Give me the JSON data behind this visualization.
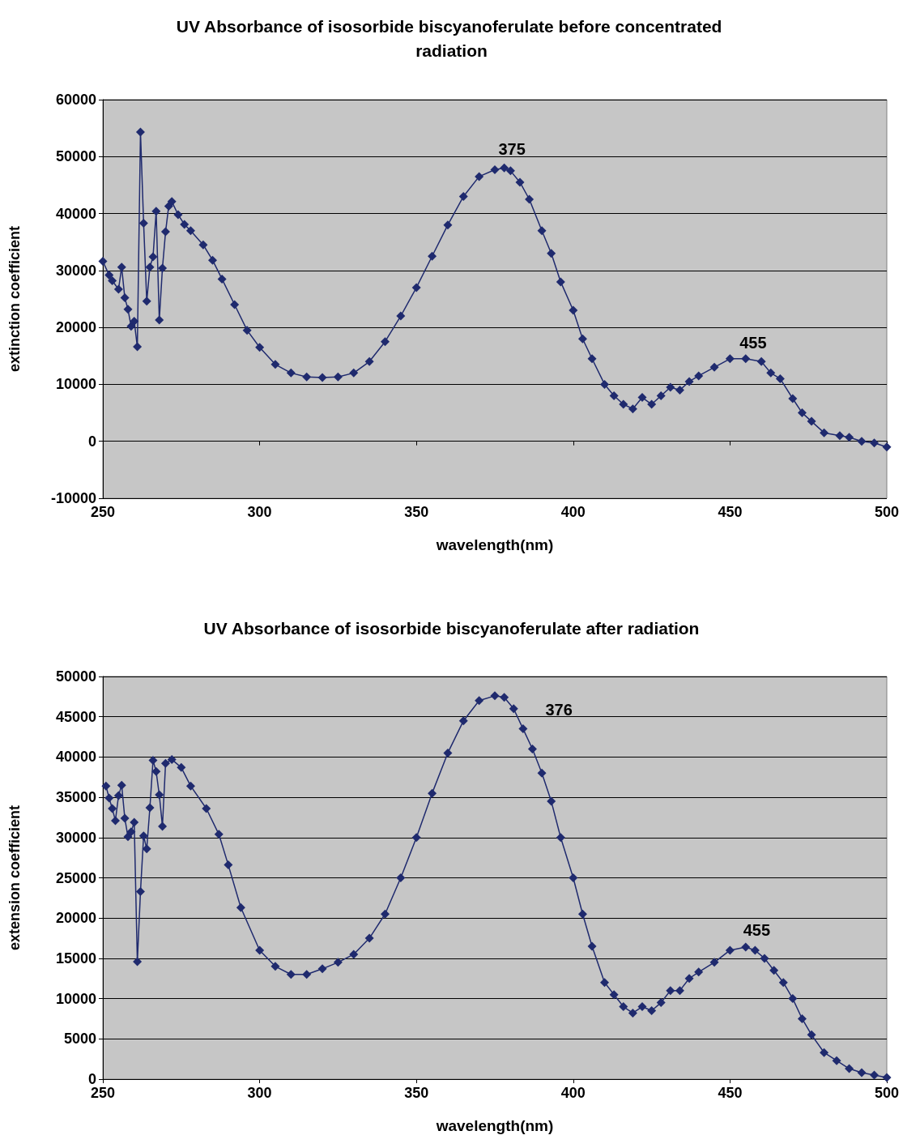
{
  "chart_data": [
    {
      "type": "line",
      "title": "UV Absorbance of isosorbide biscyanoferulate before concentrated radiation",
      "xlabel": "wavelength(nm)",
      "ylabel": "extinction coefficient",
      "x": [
        250,
        252,
        253,
        255,
        256,
        257,
        258,
        259,
        260,
        261,
        262,
        263,
        264,
        265,
        266,
        267,
        268,
        269,
        270,
        271,
        272,
        274,
        276,
        278,
        282,
        285,
        288,
        292,
        296,
        300,
        305,
        310,
        315,
        320,
        325,
        330,
        335,
        340,
        345,
        350,
        355,
        360,
        365,
        370,
        375,
        378,
        380,
        383,
        386,
        390,
        393,
        396,
        400,
        403,
        406,
        410,
        413,
        416,
        419,
        422,
        425,
        428,
        431,
        434,
        437,
        440,
        445,
        450,
        455,
        460,
        463,
        466,
        470,
        473,
        476,
        480,
        485,
        488,
        492,
        496,
        500
      ],
      "values": [
        31600,
        29200,
        28200,
        26700,
        30600,
        25200,
        23200,
        20200,
        21100,
        16600,
        54300,
        38300,
        24600,
        30600,
        32400,
        40400,
        21300,
        30400,
        36800,
        41300,
        42100,
        39800,
        38100,
        37000,
        34500,
        31800,
        28500,
        24000,
        19500,
        16500,
        13500,
        12000,
        11300,
        11200,
        11300,
        12000,
        14000,
        17500,
        22000,
        27000,
        32500,
        38000,
        43000,
        46500,
        47700,
        48000,
        47500,
        45500,
        42500,
        37000,
        33000,
        28000,
        23000,
        18000,
        14500,
        10000,
        8000,
        6500,
        5700,
        7700,
        6500,
        8000,
        9500,
        9000,
        10500,
        11500,
        13000,
        14500,
        14500,
        14000,
        12000,
        11000,
        7500,
        5000,
        3500,
        1500,
        1000,
        700,
        0,
        -300,
        -1000
      ],
      "color": "#1f2a6e",
      "marker": "diamond",
      "grid": "y",
      "xlim": [
        250,
        500
      ],
      "xticks": [
        250,
        300,
        350,
        400,
        450,
        500
      ],
      "ylim": [
        -10000,
        60000
      ],
      "yticks": [
        -10000,
        0,
        10000,
        20000,
        30000,
        40000,
        50000,
        60000
      ],
      "annotations": [
        "375",
        "455"
      ]
    },
    {
      "type": "line",
      "title": "UV Absorbance of isosorbide biscyanoferulate after radiation",
      "xlabel": "wavelength(nm)",
      "ylabel": "extension coefficient",
      "x": [
        251,
        252,
        253,
        254,
        255,
        256,
        257,
        258,
        259,
        260,
        261,
        262,
        263,
        264,
        265,
        266,
        267,
        268,
        269,
        270,
        272,
        275,
        278,
        283,
        287,
        290,
        294,
        300,
        305,
        310,
        315,
        320,
        325,
        330,
        335,
        340,
        345,
        350,
        355,
        360,
        365,
        370,
        375,
        378,
        381,
        384,
        387,
        390,
        393,
        396,
        400,
        403,
        406,
        410,
        413,
        416,
        419,
        422,
        425,
        428,
        431,
        434,
        437,
        440,
        445,
        450,
        455,
        458,
        461,
        464,
        467,
        470,
        473,
        476,
        480,
        484,
        488,
        492,
        496,
        500
      ],
      "values": [
        36400,
        34900,
        33600,
        32100,
        35200,
        36500,
        32400,
        30100,
        30700,
        31900,
        14600,
        23300,
        30200,
        28600,
        33700,
        39600,
        38200,
        35300,
        31400,
        39200,
        39700,
        38700,
        36400,
        33600,
        30400,
        26600,
        21300,
        16000,
        14000,
        13000,
        13000,
        13700,
        14500,
        15500,
        17500,
        20500,
        25000,
        30000,
        35500,
        40500,
        44500,
        47000,
        47600,
        47400,
        46000,
        43500,
        41000,
        38000,
        34500,
        30000,
        25000,
        20500,
        16500,
        12000,
        10500,
        9000,
        8200,
        9000,
        8500,
        9500,
        11000,
        11000,
        12500,
        13300,
        14500,
        16000,
        16400,
        16000,
        15000,
        13500,
        12000,
        10000,
        7500,
        5500,
        3300,
        2300,
        1300,
        800,
        500,
        200
      ],
      "color": "#1f2a6e",
      "marker": "diamond",
      "grid": "y",
      "xlim": [
        250,
        500
      ],
      "xticks": [
        250,
        300,
        350,
        400,
        450,
        500
      ],
      "ylim": [
        0,
        50000
      ],
      "yticks": [
        0,
        5000,
        10000,
        15000,
        20000,
        25000,
        30000,
        35000,
        40000,
        45000,
        50000
      ],
      "annotations": [
        "376",
        "455"
      ]
    }
  ]
}
